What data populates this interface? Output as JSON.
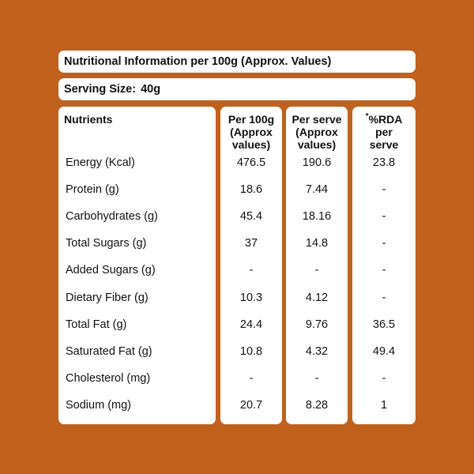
{
  "title": "Nutritional Information per 100g (Approx. Values)",
  "serving": {
    "label": "Serving Size:",
    "value": "40g"
  },
  "columns": {
    "nutrients": "Nutrients",
    "per100": [
      "Per 100g",
      "(Approx",
      "values)"
    ],
    "per_serve": [
      "Per serve",
      "(Approx",
      "values)"
    ],
    "rda": {
      "asterisk": "*",
      "lines": [
        "%RDA",
        "per",
        "serve"
      ]
    }
  },
  "rows": [
    {
      "nutrient": "Energy (Kcal)",
      "per100": "476.5",
      "per_serve": "190.6",
      "rda": "23.8"
    },
    {
      "nutrient": "Protein (g)",
      "per100": "18.6",
      "per_serve": "7.44",
      "rda": "-"
    },
    {
      "nutrient": "Carbohydrates (g)",
      "per100": "45.4",
      "per_serve": "18.16",
      "rda": "-"
    },
    {
      "nutrient": "Total Sugars (g)",
      "per100": "37",
      "per_serve": "14.8",
      "rda": "-"
    },
    {
      "nutrient": "Added Sugars (g)",
      "per100": "-",
      "per_serve": "-",
      "rda": "-"
    },
    {
      "nutrient": "Dietary Fiber (g)",
      "per100": "10.3",
      "per_serve": "4.12",
      "rda": "-"
    },
    {
      "nutrient": "Total Fat (g)",
      "per100": "24.4",
      "per_serve": "9.76",
      "rda": "36.5"
    },
    {
      "nutrient": "Saturated Fat (g)",
      "per100": "10.8",
      "per_serve": "4.32",
      "rda": "49.4"
    },
    {
      "nutrient": "Cholesterol (mg)",
      "per100": "-",
      "per_serve": "-",
      "rda": "-"
    },
    {
      "nutrient": "Sodium (mg)",
      "per100": "20.7",
      "per_serve": "8.28",
      "rda": "1"
    }
  ],
  "colors": {
    "background": "#c0611e",
    "panel": "#ffffff",
    "text": "#111111"
  }
}
